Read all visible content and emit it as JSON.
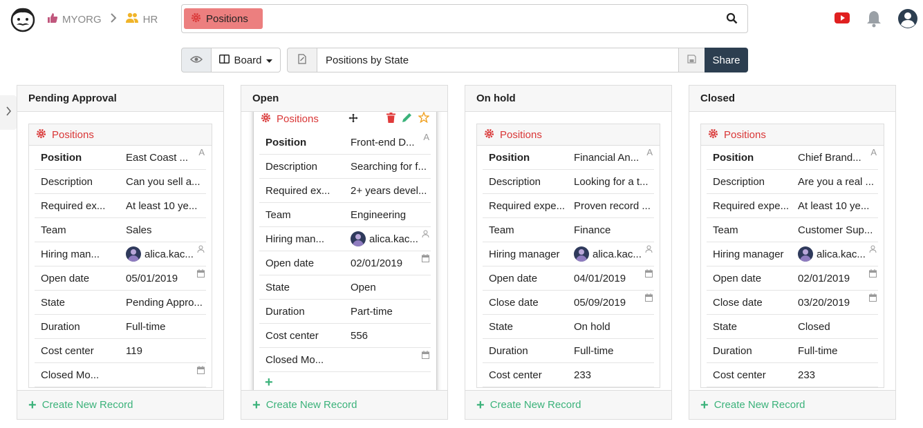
{
  "breadcrumb": {
    "org": "MYORG",
    "section": "HR"
  },
  "search": {
    "chip_label": "Positions"
  },
  "toolbar": {
    "view_mode": "Board",
    "view_name": "Positions by State",
    "share_label": "Share"
  },
  "colors": {
    "accent_red": "#d93636",
    "chip_bg": "#ec7f7f",
    "create_green": "#3bb27a",
    "share_bg": "#2c3e50"
  },
  "columns": [
    {
      "title": "Pending Approval",
      "create_label": "Create New Record",
      "card": {
        "title": "Positions",
        "rows": [
          {
            "label": "Position",
            "value": "East Coast ..."
          },
          {
            "label": "Description",
            "value": "Can you sell a..."
          },
          {
            "label": "Required ex...",
            "value": "At least 10 ye..."
          },
          {
            "label": "Team",
            "value": "Sales"
          },
          {
            "label": "Hiring man...",
            "value": "alica.kac..."
          },
          {
            "label": "Open date",
            "value": "05/01/2019"
          },
          {
            "label": "State",
            "value": "Pending Appro..."
          },
          {
            "label": "Duration",
            "value": "Full-time"
          },
          {
            "label": "Cost center",
            "value": "119"
          },
          {
            "label": "Closed Mo...",
            "value": ""
          }
        ]
      }
    },
    {
      "title": "Open",
      "create_label": "Create New Record",
      "card": {
        "title": "Positions",
        "rows": [
          {
            "label": "Position",
            "value": "Front-end D..."
          },
          {
            "label": "Description",
            "value": "Searching for f..."
          },
          {
            "label": "Required ex...",
            "value": "2+ years devel..."
          },
          {
            "label": "Team",
            "value": "Engineering"
          },
          {
            "label": "Hiring man...",
            "value": "alica.kac..."
          },
          {
            "label": "Open date",
            "value": "02/01/2019"
          },
          {
            "label": "State",
            "value": "Open"
          },
          {
            "label": "Duration",
            "value": "Part-time"
          },
          {
            "label": "Cost center",
            "value": "556"
          },
          {
            "label": "Closed Mo...",
            "value": ""
          }
        ]
      }
    },
    {
      "title": "On hold",
      "create_label": "Create New Record",
      "card": {
        "title": "Positions",
        "rows": [
          {
            "label": "Position",
            "value": "Financial An..."
          },
          {
            "label": "Description",
            "value": "Looking for a t..."
          },
          {
            "label": "Required expe...",
            "value": "Proven record ..."
          },
          {
            "label": "Team",
            "value": "Finance"
          },
          {
            "label": "Hiring manager",
            "value": "alica.kac..."
          },
          {
            "label": "Open date",
            "value": "04/01/2019"
          },
          {
            "label": "Close date",
            "value": "05/09/2019"
          },
          {
            "label": "State",
            "value": "On hold"
          },
          {
            "label": "Duration",
            "value": "Full-time"
          },
          {
            "label": "Cost center",
            "value": "233"
          }
        ]
      }
    },
    {
      "title": "Closed",
      "create_label": "Create New Record",
      "card": {
        "title": "Positions",
        "rows": [
          {
            "label": "Position",
            "value": "Chief Brand..."
          },
          {
            "label": "Description",
            "value": "Are you a real ..."
          },
          {
            "label": "Required expe...",
            "value": "At least 10 ye..."
          },
          {
            "label": "Team",
            "value": "Customer Sup..."
          },
          {
            "label": "Hiring manager",
            "value": "alica.kac..."
          },
          {
            "label": "Open date",
            "value": "02/01/2019"
          },
          {
            "label": "Close date",
            "value": "03/20/2019"
          },
          {
            "label": "State",
            "value": "Closed"
          },
          {
            "label": "Duration",
            "value": "Full-time"
          },
          {
            "label": "Cost center",
            "value": "233"
          }
        ]
      }
    }
  ]
}
